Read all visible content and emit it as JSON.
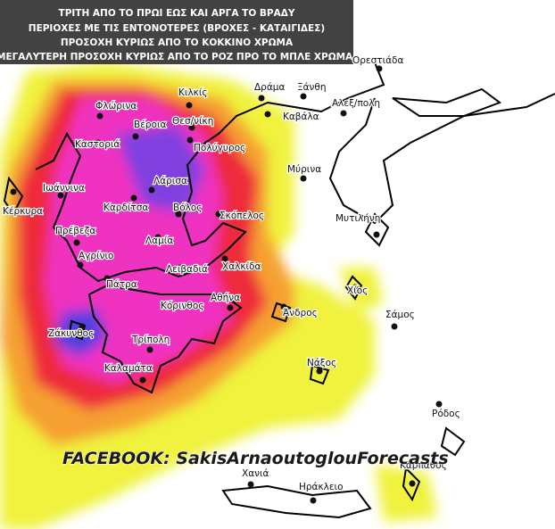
{
  "header": {
    "lines": [
      "ΤΡΙΤΗ ΑΠΟ ΤΟ ΠΡΩΙ ΕΩΣ ΚΑΙ ΑΡΓΑ ΤΟ ΒΡΑΔΥ",
      "ΠΕΡΙΟΧΕΣ ΜΕ ΤΙΣ ΕΝΤΟΝΟΤΕΡΕΣ (ΒΡΟΧΕΣ - ΚΑΤΑΙΓΙΔΕΣ)",
      "ΠΡΟΣΟΧΗ ΚΥΡΙΩΣ ΑΠΟ ΤΟ ΚΟΚΚΙΝΟ ΧΡΩΜΑ",
      "ΜΕΓΑΛΥΤΕΡΗ ΠΡΟΣΟΧΗ ΚΥΡΙΩΣ ΑΠΟ ΤΟ  ΡΟΖ ΠΡΟ ΤΟ ΜΠΛΕ  ΧΡΩΜΑ!"
    ]
  },
  "cities": [
    "Ορεστιάδα",
    "Κιλκίς",
    "Δράμα",
    "Ξάνθη",
    "Αλεξ/πολη",
    "Φλώρινα",
    "Βέροια",
    "Θεσ/νίκη",
    "Καβάλα",
    "Καστοριά",
    "Πολύγυρος",
    "Μύρινα",
    "Ιωάννινα",
    "Λάρισα",
    "Κέρκυρα",
    "Καρδίτσα",
    "Βόλος",
    "Σκόπελος",
    "Μυτιλήνη",
    "Πρέβεζα",
    "Λαμία",
    "Αγρίνιο",
    "Χαλκίδα",
    "Λειβαδιά",
    "Πάτρα",
    "Χίος",
    "Αθήνα",
    "Κόρινθος",
    "Άνδρος",
    "Σάμος",
    "Ζάκυνθος",
    "Τρίπολη",
    "Νάξος",
    "Καλαμάτα",
    "Ρόδος",
    "Κάρπαθος",
    "Χανιά",
    "Ηράκλειο"
  ],
  "watermark": "FACEBOOK: SakisArnaoutoglouForecasts"
}
